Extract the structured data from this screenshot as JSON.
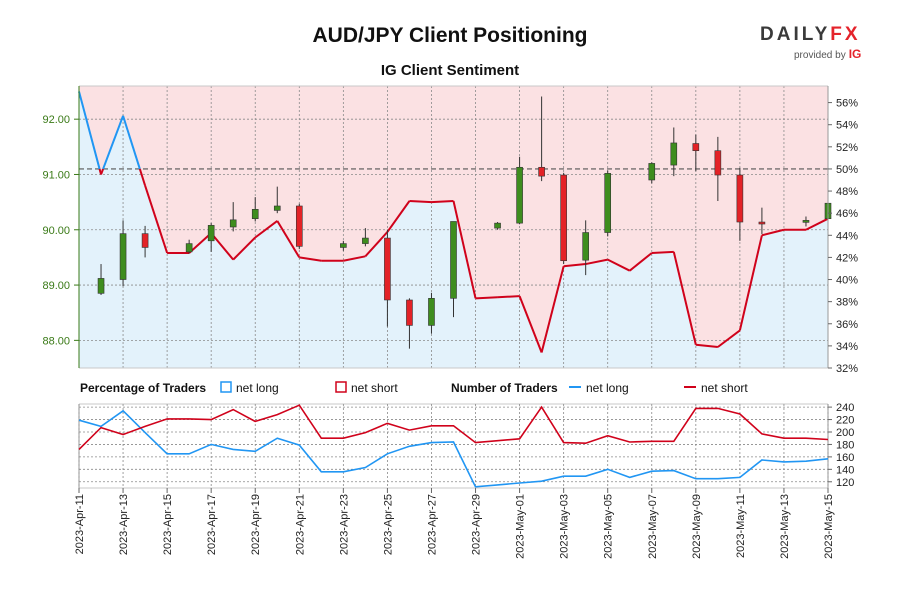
{
  "header": {
    "title": "AUD/JPY Client Positioning",
    "subtitle": "IG Client Sentiment"
  },
  "brand": {
    "logo_main": "DAILY",
    "logo_fx": "FX",
    "logo_sub": "provided by",
    "logo_ig": "IG"
  },
  "legend": {
    "pct_title": "Percentage of Traders",
    "pct_long": "net long",
    "pct_short": "net short",
    "num_title": "Number of Traders",
    "num_long": "net long",
    "num_short": "net short"
  },
  "colors": {
    "long": "#2196f3",
    "short": "#d0021b",
    "long_fill": "#e3f2fb",
    "short_fill": "#fbe1e3",
    "candle_up": "#3e8d1e",
    "candle_down": "#e32227",
    "axis_green": "#3a7a17"
  },
  "chart_data": {
    "type": "line",
    "dates": [
      "2023-Apr-11",
      "2023-Apr-12",
      "2023-Apr-13",
      "2023-Apr-14",
      "2023-Apr-15",
      "2023-Apr-16",
      "2023-Apr-17",
      "2023-Apr-18",
      "2023-Apr-19",
      "2023-Apr-20",
      "2023-Apr-21",
      "2023-Apr-22",
      "2023-Apr-23",
      "2023-Apr-24",
      "2023-Apr-25",
      "2023-Apr-26",
      "2023-Apr-27",
      "2023-Apr-28",
      "2023-Apr-29",
      "2023-Apr-30",
      "2023-May-01",
      "2023-May-02",
      "2023-May-03",
      "2023-May-04",
      "2023-May-05",
      "2023-May-06",
      "2023-May-07",
      "2023-May-08",
      "2023-May-09",
      "2023-May-10",
      "2023-May-11",
      "2023-May-12",
      "2023-May-13",
      "2023-May-14",
      "2023-May-15"
    ],
    "x_tick_labels": [
      "2023-Apr-11",
      "2023-Apr-13",
      "2023-Apr-15",
      "2023-Apr-17",
      "2023-Apr-19",
      "2023-Apr-21",
      "2023-Apr-23",
      "2023-Apr-25",
      "2023-Apr-27",
      "2023-Apr-29",
      "2023-May-01",
      "2023-May-03",
      "2023-May-05",
      "2023-May-07",
      "2023-May-09",
      "2023-May-11",
      "2023-May-13",
      "2023-May-15"
    ],
    "price_axis": {
      "label": "",
      "ticks": [
        "92.00",
        "91.00",
        "90.00",
        "89.00",
        "88.00"
      ],
      "range": [
        87.5,
        92.6
      ]
    },
    "percent_axis": {
      "ticks": [
        "56%",
        "54%",
        "52%",
        "50%",
        "48%",
        "46%",
        "44%",
        "42%",
        "40%",
        "38%",
        "36%",
        "34%",
        "32%"
      ],
      "range": [
        32,
        57.5
      ],
      "reference_line": 50
    },
    "count_axis": {
      "ticks": [
        "240",
        "220",
        "200",
        "180",
        "160",
        "140",
        "120"
      ],
      "range": [
        110,
        245
      ]
    },
    "net_long_percentage": [
      57.0,
      49.5,
      54.8,
      48.5,
      42.4,
      42.4,
      44.2,
      41.8,
      43.8,
      45.3,
      42.0,
      41.7,
      41.7,
      42.1,
      44.3,
      47.1,
      47.0,
      47.1,
      38.3,
      38.4,
      38.5,
      33.4,
      41.2,
      41.4,
      41.8,
      40.8,
      42.4,
      42.5,
      34.1,
      33.9,
      35.4,
      44.0,
      44.5,
      44.5,
      45.5
    ],
    "candles": [
      {
        "date": "2023-Apr-12",
        "open": 88.85,
        "high": 89.38,
        "low": 88.82,
        "close": 89.12
      },
      {
        "date": "2023-Apr-13",
        "open": 89.1,
        "high": 90.17,
        "low": 88.98,
        "close": 89.93
      },
      {
        "date": "2023-Apr-14",
        "open": 89.93,
        "high": 90.07,
        "low": 89.5,
        "close": 89.68
      },
      {
        "date": "2023-Apr-16",
        "open": 89.6,
        "high": 89.82,
        "low": 89.57,
        "close": 89.75
      },
      {
        "date": "2023-Apr-17",
        "open": 89.8,
        "high": 90.12,
        "low": 89.6,
        "close": 90.08
      },
      {
        "date": "2023-Apr-18",
        "open": 90.05,
        "high": 90.5,
        "low": 89.97,
        "close": 90.18
      },
      {
        "date": "2023-Apr-19",
        "open": 90.2,
        "high": 90.59,
        "low": 90.15,
        "close": 90.37
      },
      {
        "date": "2023-Apr-20",
        "open": 90.35,
        "high": 90.78,
        "low": 90.3,
        "close": 90.43
      },
      {
        "date": "2023-Apr-21",
        "open": 90.43,
        "high": 90.47,
        "low": 89.65,
        "close": 89.7
      },
      {
        "date": "2023-Apr-23",
        "open": 89.68,
        "high": 89.8,
        "low": 89.62,
        "close": 89.75
      },
      {
        "date": "2023-Apr-24",
        "open": 89.75,
        "high": 90.03,
        "low": 89.7,
        "close": 89.85
      },
      {
        "date": "2023-Apr-25",
        "open": 89.85,
        "high": 90.0,
        "low": 88.25,
        "close": 88.73
      },
      {
        "date": "2023-Apr-26",
        "open": 88.73,
        "high": 88.76,
        "low": 87.85,
        "close": 88.27
      },
      {
        "date": "2023-Apr-27",
        "open": 88.27,
        "high": 88.86,
        "low": 88.12,
        "close": 88.76
      },
      {
        "date": "2023-Apr-28",
        "open": 88.76,
        "high": 90.15,
        "low": 88.42,
        "close": 90.15
      },
      {
        "date": "2023-Apr-30",
        "open": 90.03,
        "high": 90.14,
        "low": 90.0,
        "close": 90.12
      },
      {
        "date": "2023-May-01",
        "open": 90.12,
        "high": 91.32,
        "low": 90.1,
        "close": 91.13
      },
      {
        "date": "2023-May-02",
        "open": 91.13,
        "high": 92.41,
        "low": 90.88,
        "close": 90.97
      },
      {
        "date": "2023-May-03",
        "open": 90.99,
        "high": 91.03,
        "low": 89.38,
        "close": 89.44
      },
      {
        "date": "2023-May-04",
        "open": 89.45,
        "high": 90.17,
        "low": 89.18,
        "close": 89.95
      },
      {
        "date": "2023-May-05",
        "open": 89.95,
        "high": 91.07,
        "low": 89.88,
        "close": 91.02
      },
      {
        "date": "2023-May-07",
        "open": 90.9,
        "high": 91.22,
        "low": 90.84,
        "close": 91.2
      },
      {
        "date": "2023-May-08",
        "open": 91.17,
        "high": 91.85,
        "low": 90.97,
        "close": 91.57
      },
      {
        "date": "2023-May-09",
        "open": 91.56,
        "high": 91.72,
        "low": 91.06,
        "close": 91.43
      },
      {
        "date": "2023-May-10",
        "open": 91.43,
        "high": 91.68,
        "low": 90.52,
        "close": 90.99
      },
      {
        "date": "2023-May-11",
        "open": 90.99,
        "high": 91.12,
        "low": 89.8,
        "close": 90.14
      },
      {
        "date": "2023-May-12",
        "open": 90.14,
        "high": 90.4,
        "low": 89.92,
        "close": 90.12
      },
      {
        "date": "2023-May-14",
        "open": 90.14,
        "high": 90.24,
        "low": 90.06,
        "close": 90.17
      },
      {
        "date": "2023-May-15",
        "open": 90.2,
        "high": 90.51,
        "low": 90.17,
        "close": 90.48
      }
    ],
    "series": [
      {
        "name": "net long",
        "panel": "number",
        "values": [
          219,
          209,
          234,
          199,
          165,
          165,
          180,
          172,
          169,
          190,
          179,
          136,
          136,
          143,
          165,
          177,
          183,
          184,
          112,
          115,
          118,
          121,
          129,
          129,
          140,
          127,
          137,
          138,
          125,
          125,
          127,
          155,
          152,
          153,
          157
        ]
      },
      {
        "name": "net short",
        "panel": "number",
        "values": [
          172,
          207,
          196,
          209,
          221,
          221,
          220,
          236,
          217,
          228,
          243,
          190,
          190,
          199,
          214,
          203,
          210,
          210,
          183,
          186,
          189,
          240,
          183,
          182,
          194,
          184,
          185,
          185,
          238,
          238,
          229,
          197,
          190,
          190,
          188
        ]
      }
    ]
  }
}
